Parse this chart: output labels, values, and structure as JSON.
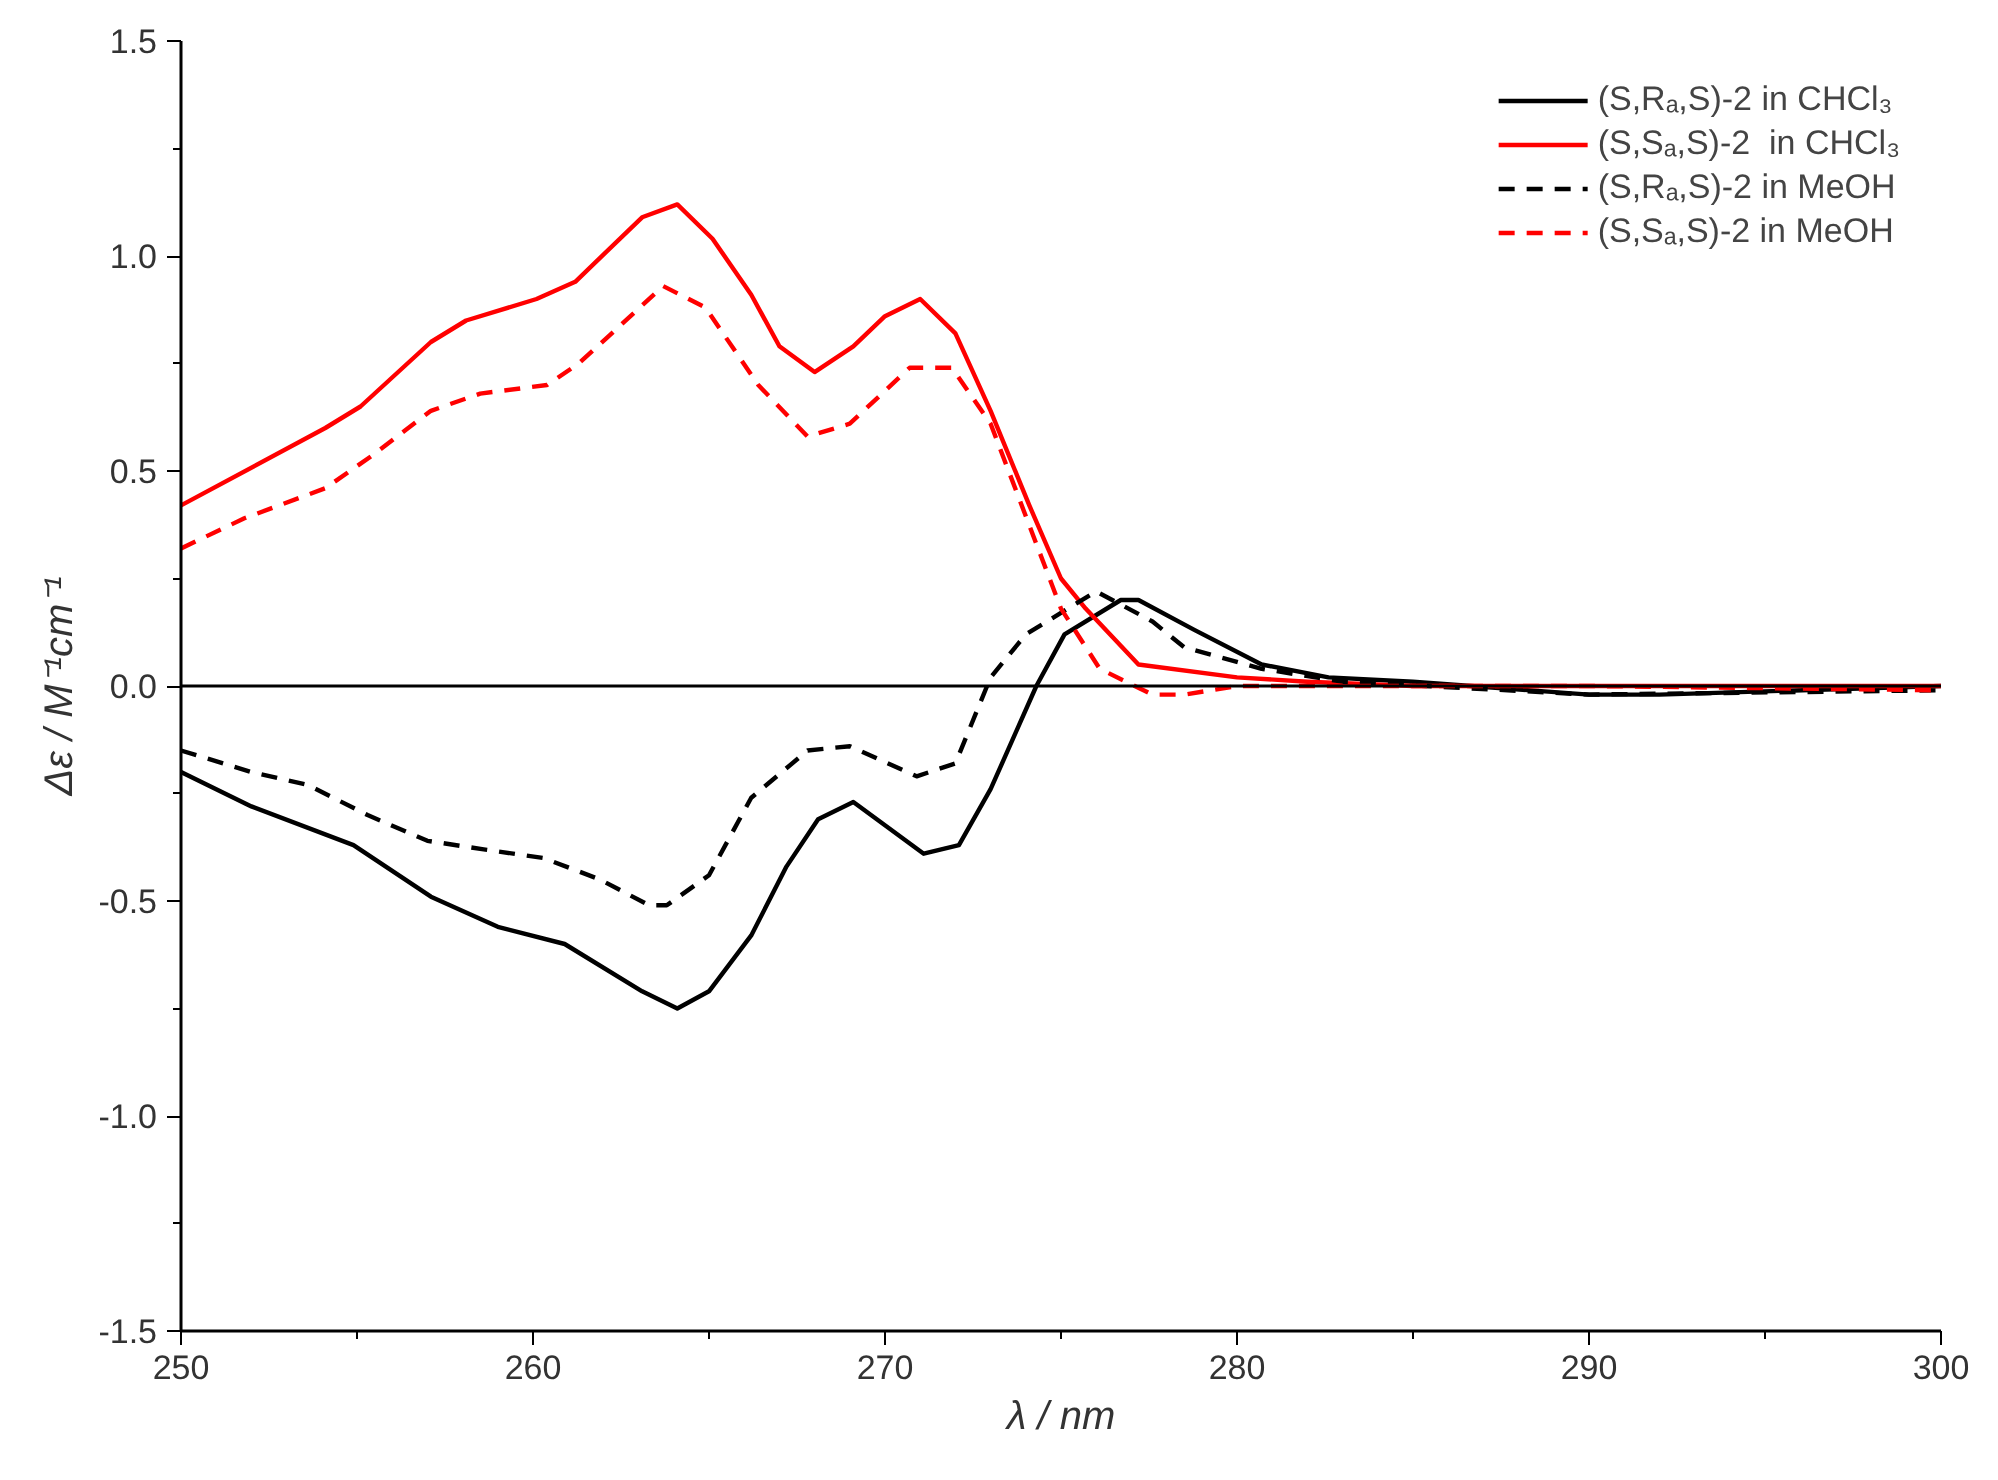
{
  "chart_data": {
    "type": "line",
    "xlabel": "λ / nm",
    "ylabel": "Δε / M⁻¹cm⁻¹",
    "xlim": [
      250,
      300
    ],
    "xticks": [
      250,
      260,
      270,
      280,
      290,
      300
    ],
    "ylim": [
      -1.5,
      1.5
    ],
    "yticks": [
      {
        "value": -1.5,
        "label": "-1.5"
      },
      {
        "value": -1.0,
        "label": "-1.0"
      },
      {
        "value": -0.5,
        "label": "-0.5"
      },
      {
        "value": 0,
        "label": "0.0"
      },
      {
        "value": 0.5,
        "label": "0.5"
      },
      {
        "value": 1.0,
        "label": "1.0"
      },
      {
        "value": 1.5,
        "label": "1.5"
      }
    ],
    "grid": false,
    "legend": "top right",
    "marker": "none",
    "ref_lines": [
      {
        "axis": "y",
        "value": 0,
        "label": null,
        "color": "#000000",
        "line_style": "solid"
      }
    ],
    "series": [
      {
        "name": "(S,Rₐ,S)-2 in CHCl₃",
        "color": "#000000",
        "line_style": "solid",
        "x": [
          250,
          252,
          254.9,
          257.1,
          259,
          260.9,
          263.1,
          264.1,
          265,
          266.2,
          267.2,
          268.1,
          269.1,
          271.1,
          272.1,
          273,
          274.3,
          275.1,
          276.7,
          277.2,
          278.8,
          280.7,
          282.6,
          285,
          290,
          292,
          300
        ],
        "values": [
          -0.2,
          -0.28,
          -0.37,
          -0.49,
          -0.56,
          -0.6,
          -0.71,
          -0.75,
          -0.71,
          -0.58,
          -0.42,
          -0.31,
          -0.27,
          -0.39,
          -0.37,
          -0.24,
          0,
          0.12,
          0.2,
          0.2,
          0.13,
          0.05,
          0.02,
          0.01,
          -0.02,
          -0.02,
          0
        ]
      },
      {
        "name": "(S,Sₐ,S)-2  in CHCl₃",
        "color": "#ff0000",
        "line_style": "solid",
        "x": [
          250,
          254.1,
          255.1,
          257.1,
          258.1,
          260.1,
          261.2,
          263.1,
          264.1,
          265.1,
          266.2,
          267,
          268,
          269.1,
          270,
          271,
          272,
          273,
          274.1,
          275,
          275.7,
          277.2,
          280,
          282,
          285,
          300
        ],
        "values": [
          0.42,
          0.6,
          0.65,
          0.8,
          0.85,
          0.9,
          0.94,
          1.09,
          1.12,
          1.04,
          0.91,
          0.79,
          0.73,
          0.79,
          0.86,
          0.9,
          0.82,
          0.64,
          0.42,
          0.25,
          0.18,
          0.05,
          0.02,
          0.01,
          0,
          0
        ]
      },
      {
        "name": "(S,Rₐ,S)-2 in MeOH",
        "color": "#000000",
        "line_style": "dashed",
        "x": [
          250,
          252,
          253.6,
          255.3,
          257,
          258.6,
          260.3,
          261.9,
          263.3,
          263.8,
          265,
          266.2,
          267.8,
          269,
          270.9,
          272,
          273,
          274,
          276,
          277.6,
          278.5,
          280.7,
          283,
          290,
          300
        ],
        "values": [
          -0.15,
          -0.2,
          -0.23,
          -0.3,
          -0.36,
          -0.38,
          -0.4,
          -0.45,
          -0.51,
          -0.51,
          -0.44,
          -0.26,
          -0.15,
          -0.14,
          -0.21,
          -0.18,
          0.02,
          0.12,
          0.22,
          0.15,
          0.09,
          0.04,
          0.01,
          -0.02,
          -0.01
        ]
      },
      {
        "name": "(S,Sₐ,S)-2 in MeOH",
        "color": "#ff0000",
        "line_style": "dashed",
        "x": [
          250,
          251.8,
          254.1,
          255.5,
          257.1,
          258.5,
          260.4,
          261.3,
          263.7,
          264.9,
          266.4,
          267.8,
          269,
          270.7,
          271.9,
          273,
          275,
          276.1,
          277.6,
          278.5,
          280,
          290,
          300
        ],
        "values": [
          0.32,
          0.39,
          0.46,
          0.54,
          0.64,
          0.68,
          0.7,
          0.75,
          0.93,
          0.88,
          0.7,
          0.58,
          0.61,
          0.74,
          0.74,
          0.61,
          0.18,
          0.04,
          -0.02,
          -0.02,
          0,
          0,
          -0.01
        ]
      }
    ]
  }
}
